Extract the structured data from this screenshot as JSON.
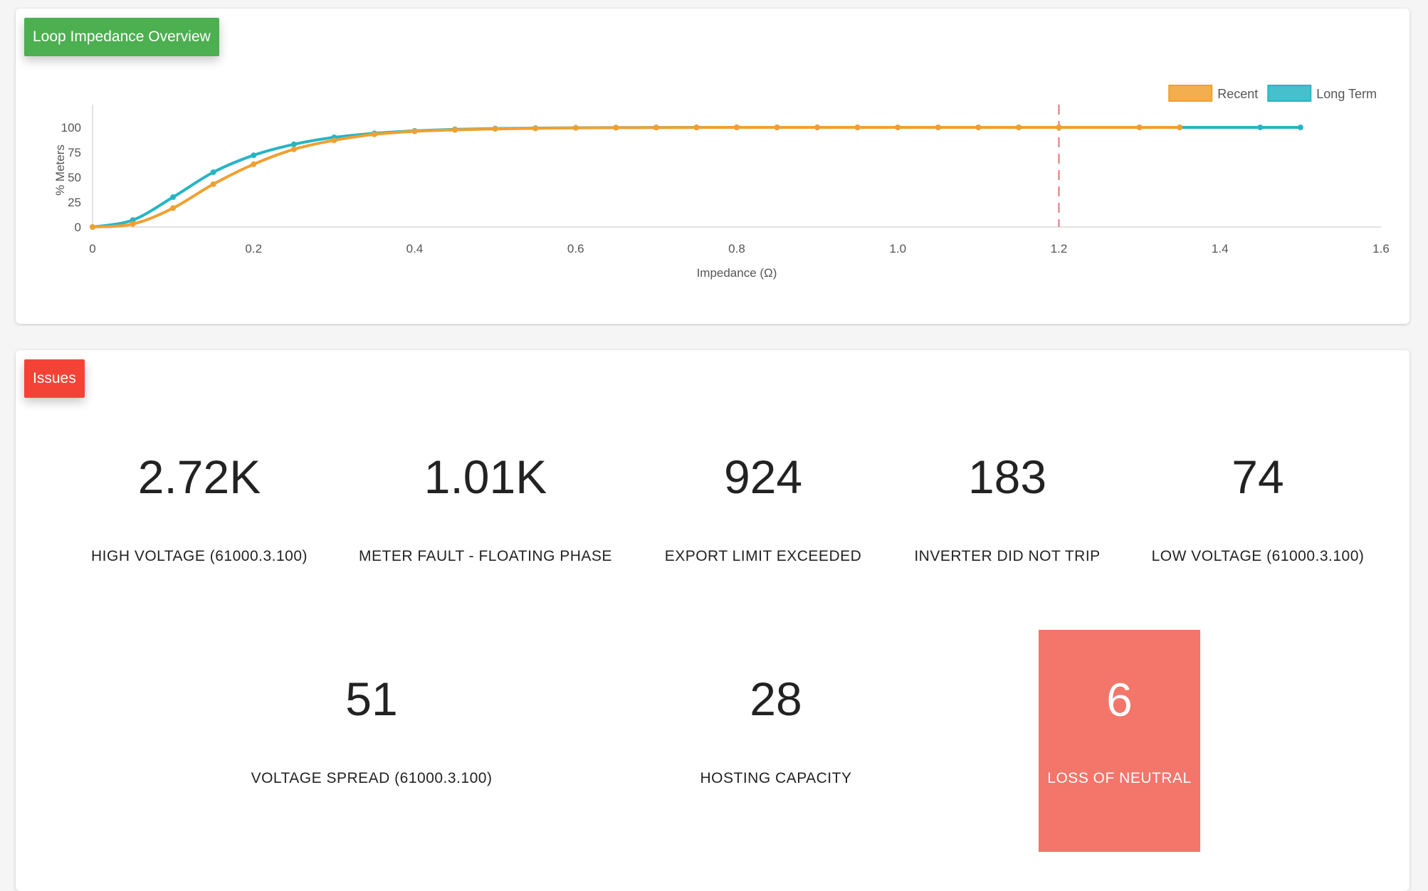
{
  "chart_card": {
    "title": "Loop Impedance Overview",
    "accent": "#4caf50"
  },
  "chart_data": {
    "type": "line",
    "xlabel": "Impedance (Ω)",
    "ylabel": "% Meters",
    "xlim": [
      0,
      1.6
    ],
    "ylim": [
      0,
      100
    ],
    "x_ticks": [
      "0",
      "0.2",
      "0.4",
      "0.6",
      "0.8",
      "1.0",
      "1.2",
      "1.4",
      "1.6"
    ],
    "y_ticks": [
      "0",
      "25",
      "50",
      "75",
      "100"
    ],
    "grid": false,
    "legend_position": "top-right",
    "threshold_x": 1.2,
    "threshold_color": "#e57373",
    "series": [
      {
        "name": "Recent",
        "color": "#f0a030",
        "x": [
          0,
          0.05,
          0.1,
          0.15,
          0.2,
          0.25,
          0.3,
          0.35,
          0.4,
          0.45,
          0.5,
          0.55,
          0.6,
          0.65,
          0.7,
          0.75,
          0.8,
          0.85,
          0.9,
          0.95,
          1.0,
          1.05,
          1.1,
          1.15,
          1.2,
          1.3,
          1.35
        ],
        "y": [
          0,
          3,
          19,
          43,
          63,
          78,
          87,
          93,
          96,
          97.5,
          98.5,
          99,
          99.5,
          99.7,
          99.8,
          99.9,
          100,
          100,
          100,
          100,
          100,
          100,
          100,
          100,
          100,
          100,
          100
        ]
      },
      {
        "name": "Long Term",
        "color": "#26b5c4",
        "x": [
          0,
          0.05,
          0.1,
          0.15,
          0.2,
          0.25,
          0.3,
          0.35,
          0.4,
          0.45,
          0.5,
          0.55,
          0.6,
          0.65,
          0.7,
          0.75,
          0.8,
          0.85,
          0.9,
          0.95,
          1.0,
          1.05,
          1.1,
          1.15,
          1.2,
          1.3,
          1.35,
          1.45,
          1.5
        ],
        "y": [
          0,
          7,
          30,
          55,
          72,
          83,
          90,
          94,
          96.5,
          98,
          98.8,
          99.3,
          99.6,
          99.8,
          99.9,
          100,
          100,
          100,
          100,
          100,
          100,
          100,
          100,
          100,
          100,
          100,
          100,
          100,
          100
        ]
      }
    ]
  },
  "issues_card": {
    "title": "Issues",
    "accent": "#f44336",
    "alert_color": "#f4756a",
    "tiles": [
      {
        "value": "2.72K",
        "label": "HIGH VOLTAGE (61000.3.100)"
      },
      {
        "value": "1.01K",
        "label": "METER FAULT - FLOATING PHASE"
      },
      {
        "value": "924",
        "label": "EXPORT LIMIT EXCEEDED"
      },
      {
        "value": "183",
        "label": "INVERTER DID NOT TRIP"
      },
      {
        "value": "74",
        "label": "LOW VOLTAGE (61000.3.100)"
      },
      {
        "value": "51",
        "label": "VOLTAGE SPREAD (61000.3.100)"
      },
      {
        "value": "28",
        "label": "HOSTING CAPACITY"
      },
      {
        "value": "6",
        "label": "LOSS OF NEUTRAL"
      }
    ]
  }
}
